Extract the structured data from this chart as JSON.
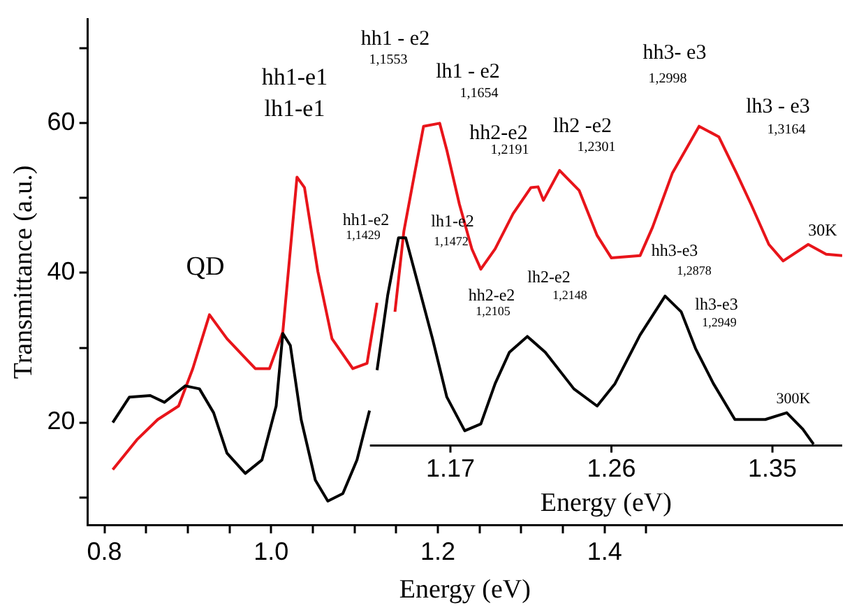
{
  "chart_data": {
    "type": "line",
    "ylabel": "Transmittance (a.u.)",
    "xlabel": "Energy (eV)",
    "x2label": "Energy (eV)",
    "xlim": [
      0.78,
      1.685
    ],
    "ylim": [
      6.3,
      73.9
    ],
    "xticks": [
      0.8,
      {
        "value": 0.85,
        "label": null
      },
      {
        "value": 0.9,
        "label": null
      },
      {
        "value": 0.95,
        "label": null
      },
      {
        "value": 1,
        "label": "1.0"
      },
      {
        "value": 1.05,
        "label": null
      },
      {
        "value": 1.1,
        "label": null
      },
      {
        "value": 1.15,
        "label": null
      },
      1.2,
      {
        "value": 1.25,
        "label": null
      },
      {
        "value": 1.3,
        "label": null
      },
      {
        "value": 1.35,
        "label": null
      },
      1.4,
      {
        "value": 1.45,
        "label": null
      }
    ],
    "yticks": [
      {
        "value": 10,
        "label": null
      },
      20,
      {
        "value": 30,
        "label": null
      },
      40,
      {
        "value": 50,
        "label": null
      },
      60,
      {
        "value": 70,
        "label": null
      }
    ],
    "x2lim": [
      1.125,
      1.389
    ],
    "x2ticks": [
      1.17,
      1.26,
      1.35
    ],
    "series": [
      {
        "color": "#000000",
        "x": [
          0.81,
          0.83,
          0.855,
          0.872,
          0.897,
          0.914,
          0.931,
          0.947,
          0.969,
          0.989,
          1.006,
          1.014,
          1.023,
          1.036,
          1.053,
          1.068,
          1.086,
          1.103,
          1.118
        ],
        "values": [
          20,
          23.4,
          23.6,
          22.7,
          24.9,
          24.5,
          21.3,
          15.9,
          13.2,
          15,
          22.2,
          31.9,
          30.3,
          20.4,
          12.3,
          9.5,
          10.5,
          15,
          21.6
        ]
      },
      {
        "color": "#e8141a",
        "x": [
          0.81,
          0.839,
          0.864,
          0.889,
          0.906,
          0.926,
          0.947,
          0.981,
          0.998,
          1.014,
          1.031,
          1.04,
          1.056,
          1.073,
          1.098,
          1.115,
          1.127
        ],
        "values": [
          13.7,
          17.7,
          20.4,
          22.2,
          27.2,
          34.4,
          31.2,
          27.2,
          27.2,
          32.1,
          52.8,
          51.4,
          40.2,
          31.2,
          27.2,
          27.9,
          36
        ]
      },
      {
        "color": "#000000",
        "axis": "x2",
        "x": [
          1.129,
          1.135,
          1.141,
          1.145,
          1.15,
          1.16,
          1.168,
          1.178,
          1.187,
          1.195,
          1.203,
          1.213,
          1.223,
          1.239,
          1.252,
          1.262,
          1.276,
          1.29,
          1.299,
          1.307,
          1.317,
          1.329,
          1.346,
          1.358,
          1.367,
          1.373
        ],
        "values": [
          27,
          37.1,
          44.7,
          44.7,
          40.2,
          31.2,
          23.4,
          18.9,
          19.8,
          25.2,
          29.4,
          31.5,
          29.4,
          24.5,
          22.2,
          25.2,
          31.7,
          36.9,
          34.8,
          29.9,
          25.2,
          20.4,
          20.4,
          21.3,
          19.1,
          17.1
        ]
      },
      {
        "color": "#e8141a",
        "axis": "x2",
        "x": [
          1.139,
          1.144,
          1.15,
          1.155,
          1.164,
          1.168,
          1.175,
          1.182,
          1.187,
          1.195,
          1.205,
          1.215,
          1.219,
          1.222,
          1.231,
          1.242,
          1.252,
          1.26,
          1.276,
          1.283,
          1.294,
          1.309,
          1.32,
          1.33,
          1.338,
          1.348,
          1.356,
          1.37,
          1.38,
          1.389
        ],
        "values": [
          34.8,
          45.6,
          53.3,
          59.6,
          60,
          56.4,
          49.2,
          43.2,
          40.5,
          43.2,
          47.9,
          51.4,
          51.5,
          49.7,
          53.7,
          51,
          45,
          42,
          42.3,
          46.1,
          53.3,
          59.6,
          58.2,
          53.3,
          49.2,
          43.8,
          41.6,
          43.8,
          42.5,
          42.3
        ]
      }
    ],
    "annotations": [
      "QD",
      "hh1-e1",
      "lh1-e1",
      "hh1 - e2",
      "1,1553",
      "lh1 - e2",
      "1,1654",
      "hh2-e2",
      "1,2191",
      "lh2 -e2",
      "1,2301",
      "hh3- e3",
      "1,2998",
      "lh3 - e3",
      "1,3164",
      "hh1-e2",
      "1,1429",
      "lh1-e2",
      "1,1472",
      "hh2-e2",
      "1,2105",
      "lh2-e2",
      "1,2148",
      "hh3-e3",
      "1,2878",
      "lh3-e3",
      "1,2949",
      "30K",
      "300K"
    ]
  }
}
